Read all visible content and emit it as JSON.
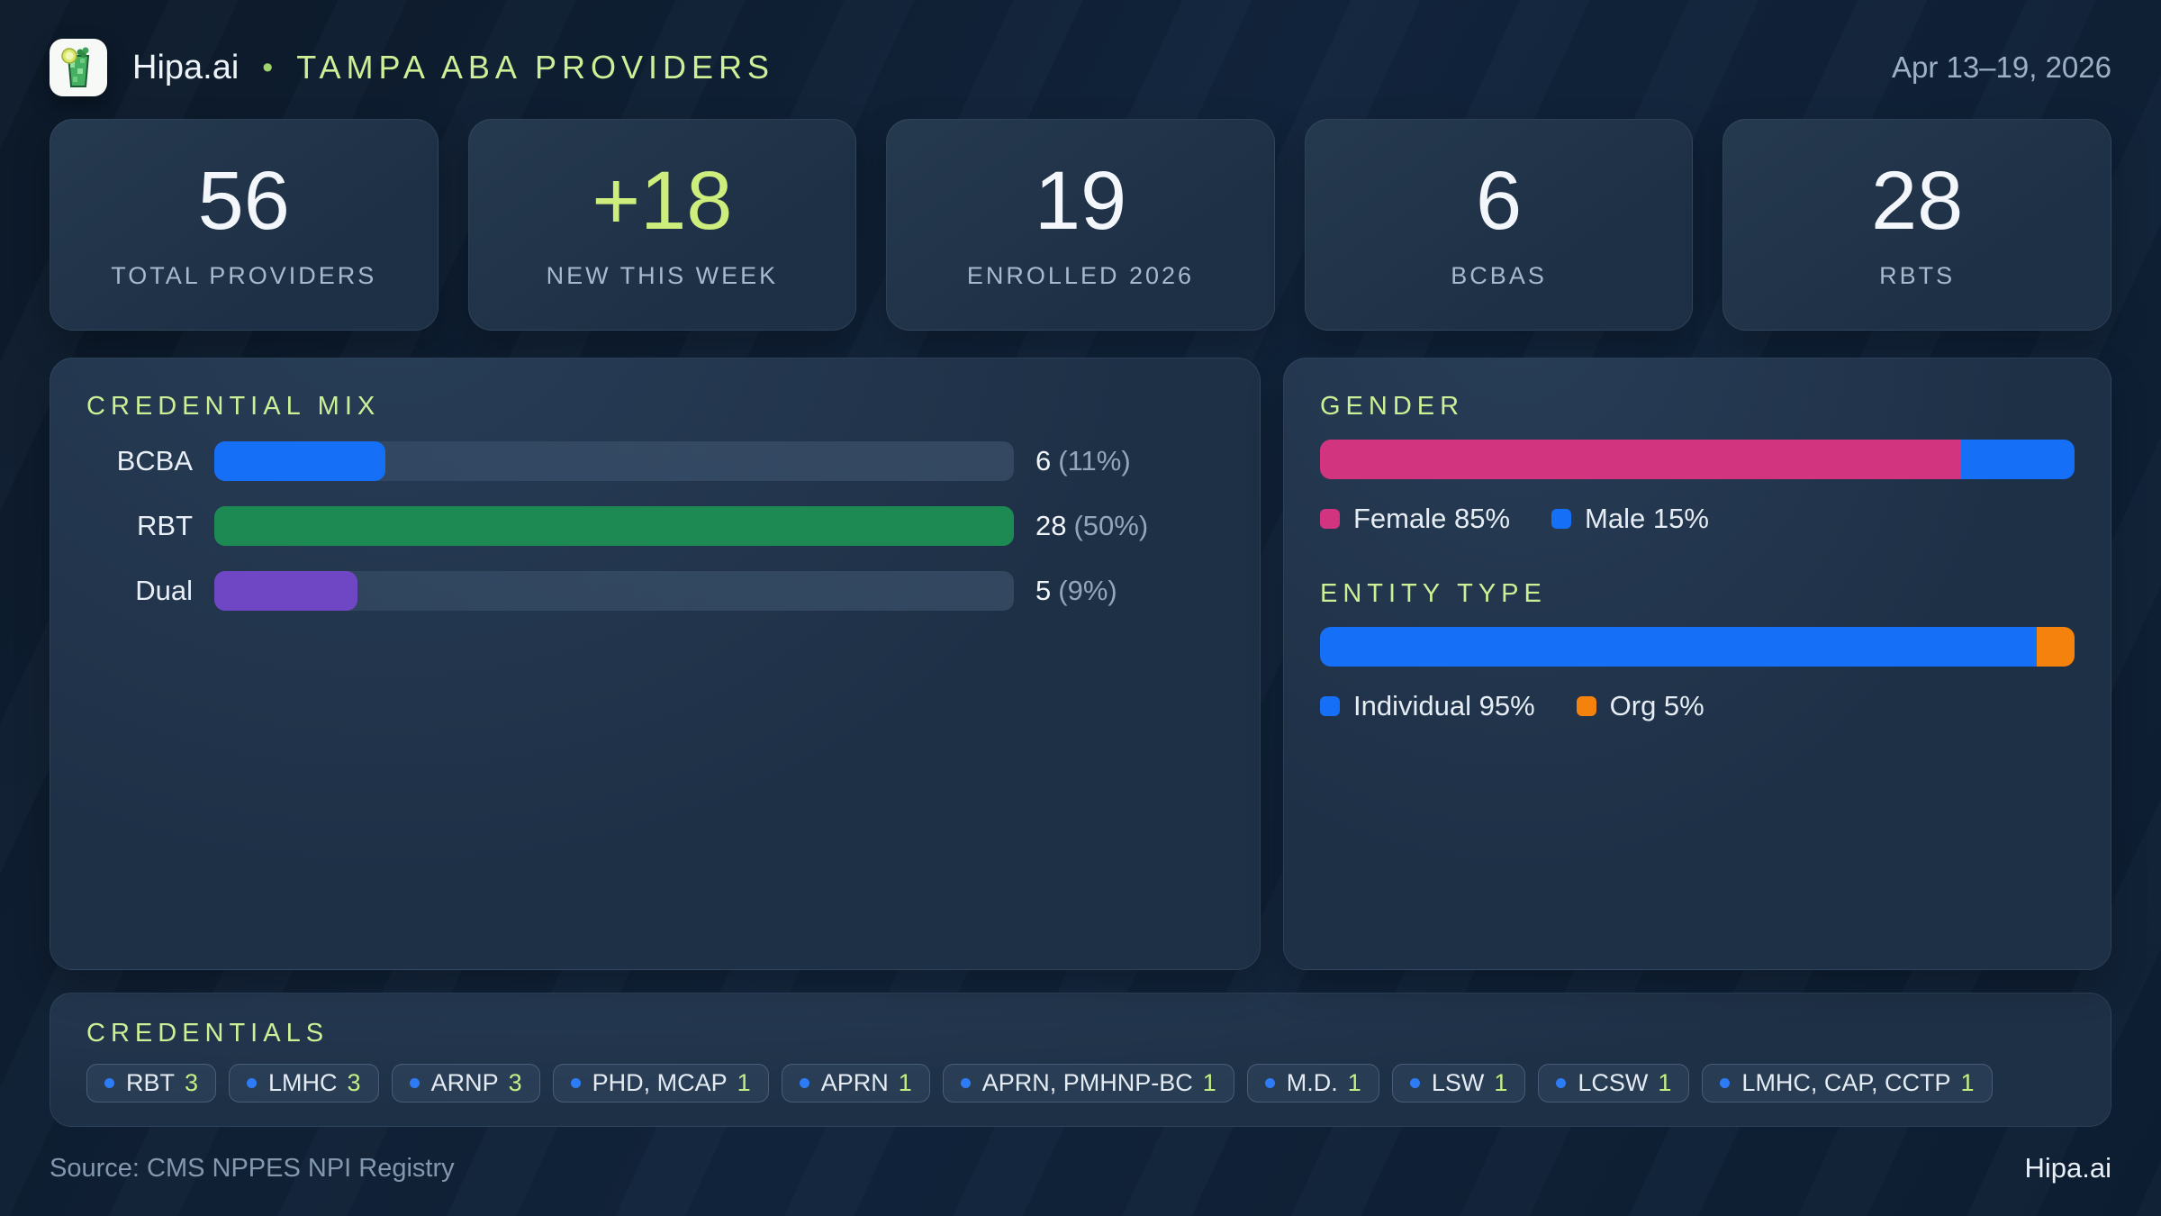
{
  "header": {
    "brand": "Hipa.ai",
    "separator": "•",
    "title": "TAMPA ABA PROVIDERS",
    "date_range": "Apr 13–19, 2026",
    "logo_icon": "mojito-glass-icon"
  },
  "stats": [
    {
      "value": "56",
      "label": "TOTAL PROVIDERS",
      "highlight": false
    },
    {
      "value": "+18",
      "label": "NEW THIS WEEK",
      "highlight": true
    },
    {
      "value": "19",
      "label": "ENROLLED 2026",
      "highlight": false
    },
    {
      "value": "6",
      "label": "BCBAS",
      "highlight": false
    },
    {
      "value": "28",
      "label": "RBTS",
      "highlight": false
    }
  ],
  "chart_data": [
    {
      "type": "bar",
      "orientation": "horizontal",
      "title": "CREDENTIAL MIX",
      "categories": [
        "BCBA",
        "RBT",
        "Dual"
      ],
      "values": [
        6,
        28,
        5
      ],
      "value_display": [
        "6",
        "28",
        "5"
      ],
      "pct_display": [
        "(11%)",
        "(50%)",
        "(9%)"
      ],
      "bar_colors": [
        "#156ff7",
        "#1c8a52",
        "#6f46c4"
      ],
      "xlim": [
        0,
        28
      ],
      "grid": false,
      "legend_position": "none"
    },
    {
      "type": "stacked-bar",
      "title": "GENDER",
      "segments": [
        {
          "label": "Female",
          "value": 85,
          "color": "#d23480"
        },
        {
          "label": "Male",
          "value": 15,
          "color": "#156ff7"
        }
      ],
      "legend": [
        "Female 85%",
        "Male 15%"
      ],
      "legend_position": "bottom"
    },
    {
      "type": "stacked-bar",
      "title": "ENTITY TYPE",
      "segments": [
        {
          "label": "Individual",
          "value": 95,
          "color": "#156ff7"
        },
        {
          "label": "Org",
          "value": 5,
          "color": "#f5820c"
        }
      ],
      "legend": [
        "Individual 95%",
        "Org 5%"
      ],
      "legend_position": "bottom"
    }
  ],
  "credentials": {
    "title": "CREDENTIALS",
    "badges": [
      {
        "label": "RBT",
        "count": "3"
      },
      {
        "label": "LMHC",
        "count": "3"
      },
      {
        "label": "ARNP",
        "count": "3"
      },
      {
        "label": "PHD, MCAP",
        "count": "1"
      },
      {
        "label": "APRN",
        "count": "1"
      },
      {
        "label": "APRN, PMHNP-BC",
        "count": "1"
      },
      {
        "label": "M.D.",
        "count": "1"
      },
      {
        "label": "LSW",
        "count": "1"
      },
      {
        "label": "LCSW",
        "count": "1"
      },
      {
        "label": "LMHC, CAP, CCTP",
        "count": "1"
      }
    ]
  },
  "footer": {
    "source": "Source: CMS NPPES NPI Registry",
    "brand": "Hipa.ai"
  },
  "colors": {
    "accent_green_text": "#cdf096",
    "stat_highlight": "#cdee7d",
    "blue": "#156ff7",
    "bar_green": "#1c8a52",
    "purple": "#6f46c4",
    "pink": "#d23480",
    "orange": "#f5820c",
    "muted_text": "#9cb0c6",
    "badge_dot": "#2e7bf6"
  }
}
